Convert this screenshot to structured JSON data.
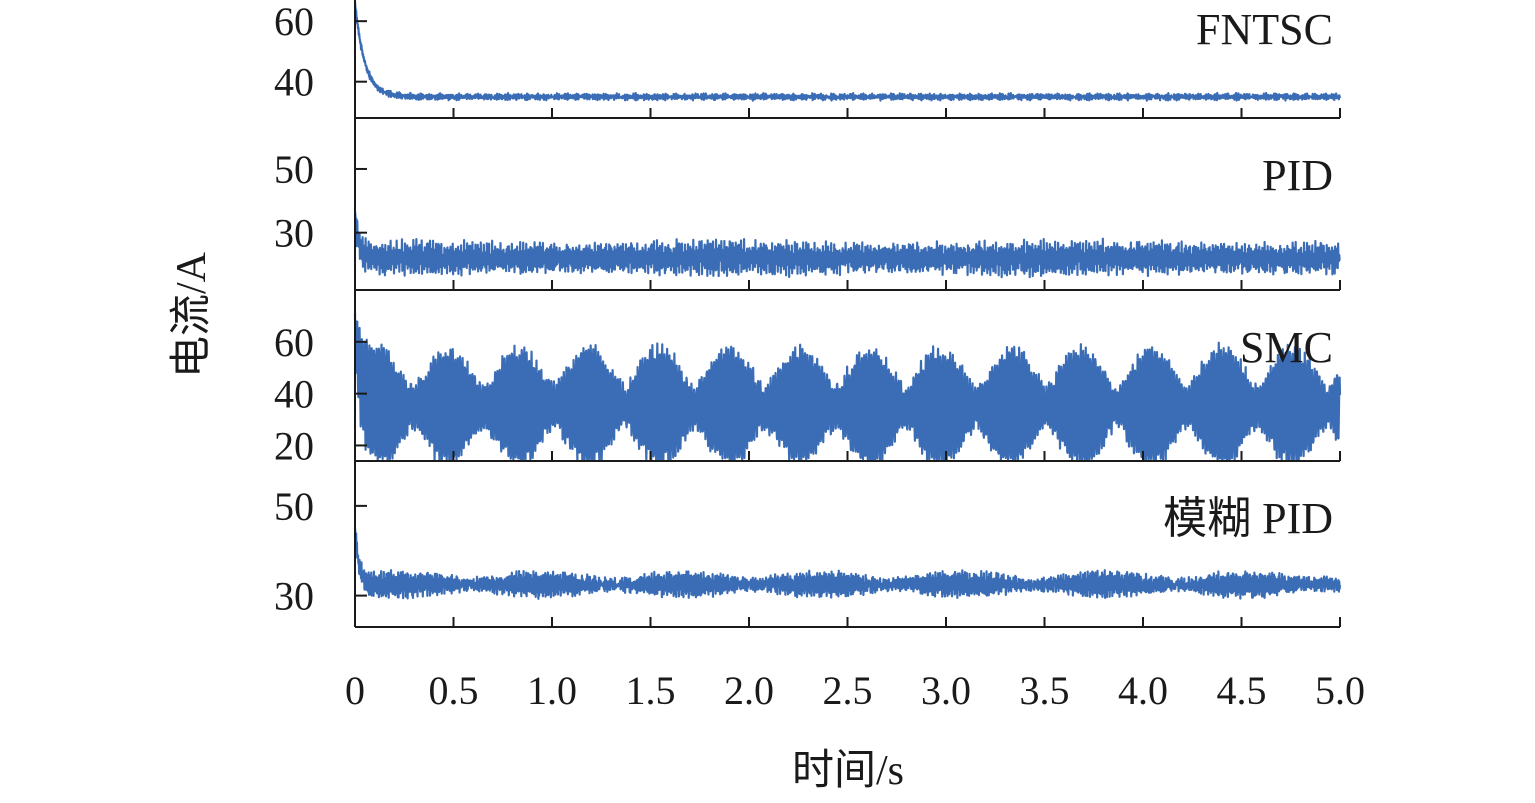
{
  "chart_data": {
    "type": "line",
    "xlabel": "时间/s",
    "ylabel": "电流/A",
    "x_range": [
      0,
      5
    ],
    "x_ticks": [
      "0",
      "0.5",
      "1.0",
      "1.5",
      "2.0",
      "2.5",
      "3.0",
      "3.5",
      "4.0",
      "4.5",
      "5.0"
    ],
    "line_color": "#3a6db5",
    "grid": false,
    "panels": [
      {
        "name": "FNTSC",
        "ylim": [
          28,
          67
        ],
        "yticks": [
          60,
          40
        ],
        "signal": {
          "initial": 66,
          "steady": 35,
          "decay_time": 0.05,
          "ripple_amplitude": 0.6,
          "ripple_cycles": 250,
          "noise": 0.4
        }
      },
      {
        "name": "PID",
        "ylim": [
          12,
          66
        ],
        "yticks": [
          50,
          30
        ],
        "signal": {
          "initial": 36,
          "steady": 22,
          "decay_time": 0.02,
          "ripple_amplitude": 3.2,
          "ripple_cycles": 190,
          "noise": 1.5
        }
      },
      {
        "name": "SMC",
        "ylim": [
          14,
          80
        ],
        "yticks": [
          60,
          40,
          20
        ],
        "signal": {
          "initial": 64,
          "steady": 35,
          "decay_time": 0.03,
          "ripple_amplitude": 15,
          "ripple_cycles": 440,
          "noise": 2.5
        }
      },
      {
        "name": "模糊 PID",
        "ylim": [
          23,
          60
        ],
        "yticks": [
          50,
          30
        ],
        "signal": {
          "initial": 45,
          "steady": 32.5,
          "decay_time": 0.02,
          "ripple_amplitude": 1.6,
          "ripple_cycles": 220,
          "noise": 0.9
        }
      }
    ]
  }
}
